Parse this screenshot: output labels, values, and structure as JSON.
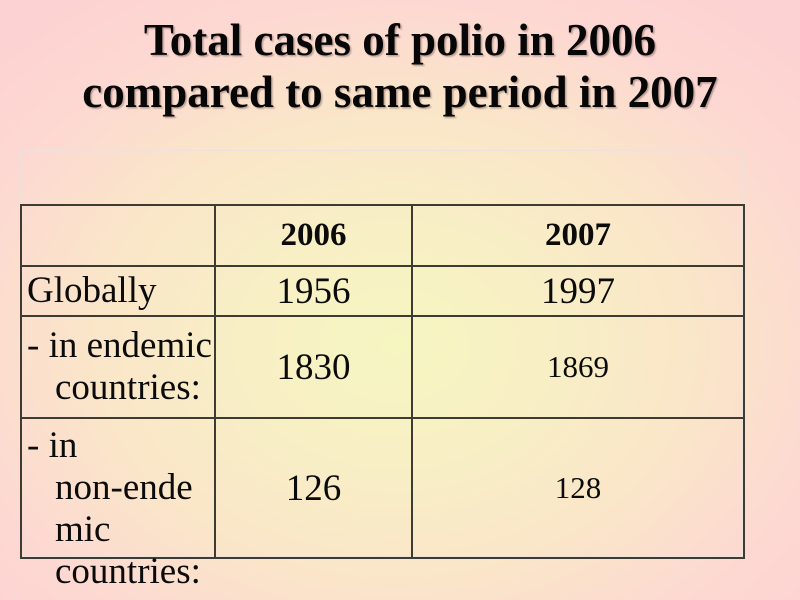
{
  "slide": {
    "title": {
      "line1": "Total cases of polio in 2006",
      "line2": "compared to same period in 2007"
    },
    "table": {
      "headers": {
        "blank": "",
        "col2006": "2006",
        "col2007": "2007"
      },
      "rows": [
        {
          "label_lines": [
            "Globally"
          ],
          "v2006": "1956",
          "v2007": "1997"
        },
        {
          "label_lines": [
            "- in endemic",
            "countries:"
          ],
          "v2006": "1830",
          "v2007": "1869"
        },
        {
          "label_lines": [
            "- in",
            "non-ende",
            "mic",
            "countries:"
          ],
          "v2006": "126",
          "v2007": "128"
        }
      ]
    },
    "colors": {
      "background_edge_pink": "#fdd2d2",
      "background_center_yellow": "#f6f6c1",
      "background_mid_cream": "#fae5c9",
      "table_border_dark": "#3c3c33",
      "placeholder_border_light": "#eee0da",
      "text": "#0b0b0b"
    }
  },
  "chart_data": {
    "type": "table",
    "title": "Total cases of polio in 2006 compared to same period in 2007",
    "categories": [
      "Globally",
      "in endemic countries",
      "in non-endemic countries"
    ],
    "series": [
      {
        "name": "2006",
        "values": [
          1956,
          1830,
          126
        ]
      },
      {
        "name": "2007",
        "values": [
          1997,
          1869,
          128
        ]
      }
    ]
  }
}
